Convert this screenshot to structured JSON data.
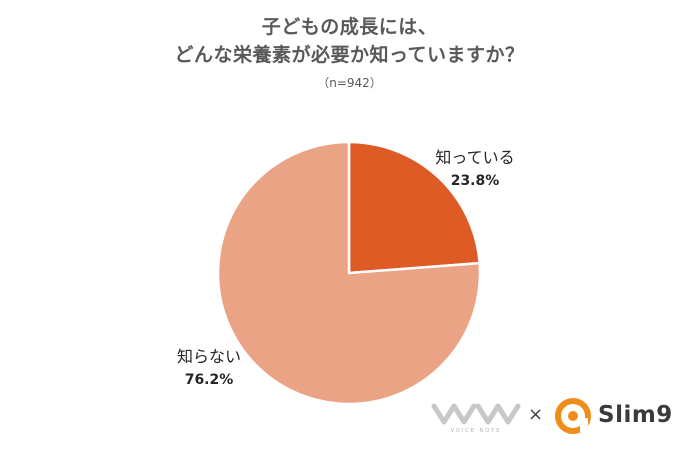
{
  "title_line1": "子どもの成長には、",
  "title_line2": "どんな栄養素が必要か知っていますか？",
  "subtitle": "（n=942）",
  "chart_data": {
    "type": "pie",
    "slices": [
      {
        "name": "知っている",
        "value": 23.8,
        "value_label": "23.8%",
        "color": "#de5b26"
      },
      {
        "name": "知らない",
        "value": 76.2,
        "value_label": "76.2%",
        "color": "#eba385"
      }
    ],
    "start_angle": "12 o'clock",
    "direction": "clockwise"
  },
  "logos": {
    "voice_note": "VOICE NOTE",
    "times": "×",
    "slim9": "Slim9"
  },
  "colors": {
    "title": "#595959",
    "slice_known": "#de5b26",
    "slice_unknown": "#eba385",
    "slim_orange": "#f08c1a"
  }
}
